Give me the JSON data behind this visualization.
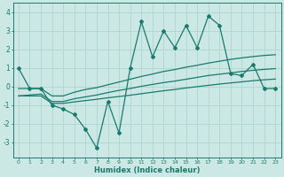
{
  "xlabel": "Humidex (Indice chaleur)",
  "x_data": [
    0,
    1,
    2,
    3,
    4,
    5,
    6,
    7,
    8,
    9,
    10,
    11,
    12,
    13,
    14,
    15,
    16,
    17,
    18,
    19,
    20,
    21,
    22,
    23
  ],
  "y_main": [
    1.0,
    -0.1,
    -0.1,
    -1.0,
    -1.2,
    -1.5,
    -2.3,
    -3.3,
    -0.8,
    -2.5,
    1.0,
    3.5,
    1.6,
    3.0,
    2.1,
    3.3,
    2.1,
    3.8,
    3.3,
    0.7,
    0.6,
    1.2,
    -0.1,
    -0.1
  ],
  "y_line1": [
    -0.1,
    -0.1,
    -0.1,
    -0.5,
    -0.5,
    -0.3,
    -0.15,
    -0.05,
    0.1,
    0.25,
    0.4,
    0.55,
    0.68,
    0.82,
    0.92,
    1.05,
    1.15,
    1.27,
    1.37,
    1.47,
    1.55,
    1.62,
    1.68,
    1.72
  ],
  "y_line2": [
    -0.5,
    -0.45,
    -0.4,
    -0.8,
    -0.8,
    -0.65,
    -0.55,
    -0.45,
    -0.32,
    -0.2,
    -0.1,
    0.02,
    0.12,
    0.22,
    0.3,
    0.4,
    0.5,
    0.6,
    0.67,
    0.74,
    0.82,
    0.88,
    0.93,
    0.97
  ],
  "y_line3": [
    -0.5,
    -0.5,
    -0.5,
    -0.9,
    -0.9,
    -0.82,
    -0.75,
    -0.68,
    -0.6,
    -0.53,
    -0.46,
    -0.38,
    -0.3,
    -0.22,
    -0.15,
    -0.07,
    0.0,
    0.07,
    0.14,
    0.2,
    0.26,
    0.32,
    0.37,
    0.41
  ],
  "line_color": "#1a7a6e",
  "bg_color": "#cce8e4",
  "grid_color": "#b0d8d4",
  "tick_color": "#1a7a6e",
  "ylim": [
    -3.8,
    4.5
  ],
  "xlim": [
    -0.5,
    23.5
  ],
  "yticks": [
    -3,
    -2,
    -1,
    0,
    1,
    2,
    3,
    4
  ],
  "xticks": [
    0,
    1,
    2,
    3,
    4,
    5,
    6,
    7,
    8,
    9,
    10,
    11,
    12,
    13,
    14,
    15,
    16,
    17,
    18,
    19,
    20,
    21,
    22,
    23
  ]
}
